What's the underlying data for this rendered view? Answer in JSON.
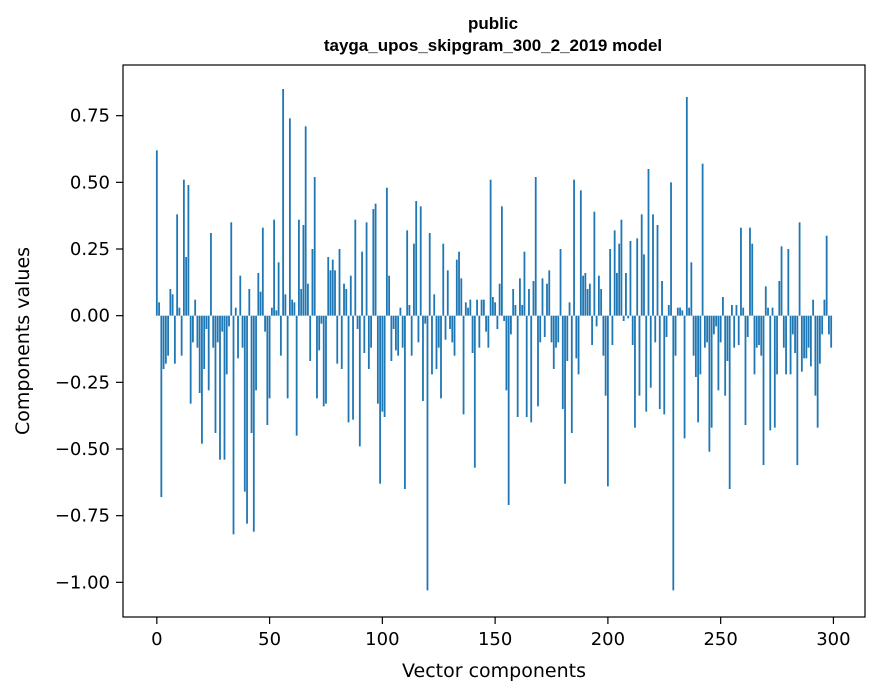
{
  "chart_data": {
    "type": "bar",
    "title": "public",
    "subtitle": "tayga_upos_skipgram_300_2_2019 model",
    "xlabel": "Vector components",
    "ylabel": "Components values",
    "xlim": [
      -15,
      314
    ],
    "ylim": [
      -1.13,
      0.94
    ],
    "xticks": [
      0,
      50,
      100,
      150,
      200,
      250,
      300
    ],
    "xtick_labels": [
      "0",
      "50",
      "100",
      "150",
      "200",
      "250",
      "300"
    ],
    "yticks": [
      -1.0,
      -0.75,
      -0.5,
      -0.25,
      0.0,
      0.25,
      0.5,
      0.75
    ],
    "ytick_labels": [
      "−1.00",
      "−0.75",
      "−0.50",
      "−0.25",
      "0.00",
      "0.25",
      "0.50",
      "0.75"
    ],
    "grid": false,
    "legend": "none",
    "bar_color": "#1f77b4",
    "series": [
      {
        "values": [
          0.62,
          0.05,
          -0.68,
          -0.2,
          -0.18,
          -0.15,
          0.1,
          0.08,
          -0.18,
          0.38,
          0.03,
          -0.15,
          0.51,
          0.22,
          0.49,
          -0.33,
          -0.1,
          0.06,
          -0.12,
          -0.29,
          -0.48,
          -0.2,
          -0.05,
          -0.28,
          0.31,
          -0.12,
          -0.44,
          -0.1,
          -0.54,
          -0.06,
          -0.54,
          -0.22,
          -0.04,
          0.35,
          -0.82,
          0.03,
          -0.16,
          0.15,
          -0.12,
          -0.66,
          -0.78,
          0.1,
          -0.44,
          -0.81,
          -0.28,
          0.16,
          0.09,
          0.33,
          -0.06,
          -0.41,
          -0.31,
          0.03,
          0.36,
          0.02,
          0.2,
          -0.15,
          0.85,
          0.08,
          -0.31,
          0.74,
          0.06,
          0.05,
          -0.45,
          0.36,
          0.1,
          0.34,
          0.71,
          0.12,
          -0.17,
          0.25,
          0.52,
          -0.31,
          -0.13,
          -0.03,
          -0.34,
          -0.33,
          0.22,
          0.17,
          0.21,
          0.17,
          -0.18,
          0.25,
          -0.2,
          0.12,
          0.1,
          -0.4,
          0.15,
          -0.39,
          0.36,
          -0.05,
          -0.49,
          0.24,
          -0.14,
          0.35,
          -0.2,
          -0.12,
          0.4,
          0.42,
          -0.33,
          -0.63,
          -0.36,
          -0.38,
          0.48,
          0.15,
          -0.17,
          -0.05,
          -0.13,
          -0.15,
          0.03,
          -0.12,
          -0.65,
          0.32,
          0.04,
          -0.15,
          0.27,
          0.43,
          -0.1,
          0.41,
          -0.32,
          -0.03,
          -1.03,
          0.31,
          -0.22,
          0.08,
          -0.2,
          -0.12,
          -0.31,
          0.27,
          -0.09,
          0.17,
          -0.05,
          -0.1,
          -0.15,
          0.21,
          0.24,
          0.14,
          -0.37,
          0.05,
          0.03,
          0.06,
          -0.14,
          -0.57,
          0.06,
          -0.12,
          0.06,
          0.06,
          -0.06,
          -0.12,
          0.51,
          0.07,
          0.05,
          -0.05,
          0.12,
          0.41,
          -0.02,
          -0.28,
          -0.71,
          -0.07,
          0.1,
          0.04,
          -0.38,
          0.14,
          0.04,
          0.24,
          -0.38,
          0.1,
          -0.4,
          0.13,
          0.52,
          -0.34,
          -0.1,
          0.14,
          -0.08,
          0.12,
          0.17,
          -0.1,
          -0.2,
          -0.12,
          -0.1,
          0.25,
          -0.35,
          -0.63,
          -0.17,
          0.05,
          -0.44,
          0.51,
          -0.16,
          -0.22,
          0.47,
          0.15,
          0.16,
          0.1,
          0.12,
          -0.11,
          0.39,
          -0.04,
          0.15,
          0.1,
          -0.15,
          -0.3,
          -0.64,
          0.25,
          -0.11,
          0.32,
          0.16,
          0.27,
          0.36,
          -0.02,
          0.16,
          -0.01,
          0.28,
          -0.11,
          -0.42,
          0.29,
          -0.3,
          0.38,
          0.23,
          -0.36,
          0.55,
          -0.27,
          0.38,
          -0.1,
          0.34,
          -0.35,
          0.13,
          -0.37,
          -0.08,
          0.04,
          0.5,
          -1.03,
          -0.15,
          0.03,
          0.03,
          0.02,
          -0.46,
          0.82,
          0.03,
          0.2,
          -0.15,
          -0.23,
          -0.4,
          -0.22,
          0.57,
          -0.12,
          -0.1,
          -0.51,
          -0.42,
          -0.07,
          -0.04,
          -0.28,
          -0.1,
          0.07,
          -0.3,
          -0.17,
          -0.65,
          0.04,
          -0.12,
          0.04,
          -0.11,
          0.33,
          0.03,
          -0.41,
          -0.08,
          0.33,
          0.27,
          -0.22,
          -0.12,
          -0.11,
          -0.15,
          -0.56,
          0.11,
          0.03,
          -0.43,
          0.03,
          -0.42,
          -0.22,
          0.13,
          0.26,
          -0.12,
          -0.22,
          0.25,
          -0.22,
          -0.07,
          -0.14,
          -0.56,
          0.35,
          -0.21,
          -0.16,
          -0.16,
          -0.12,
          -0.19,
          0.06,
          -0.3,
          -0.42,
          -0.18,
          -0.07,
          0.06,
          0.3,
          -0.07,
          -0.12
        ]
      }
    ]
  }
}
